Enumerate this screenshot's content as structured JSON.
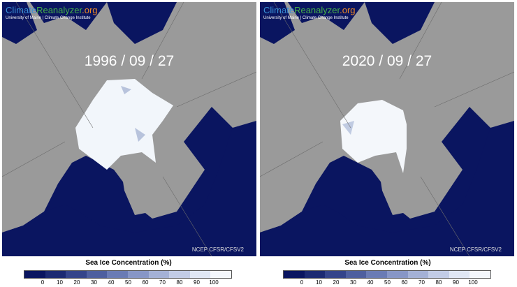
{
  "panels": [
    {
      "brand": {
        "climate": "Climate",
        "reanalyzer": "Reanalyzer",
        "org": ".org"
      },
      "subtitle": "University of Maine | Climate Change Institute",
      "date": "1996 / 09 / 27",
      "source": "NCEP CFSR/CFSV2"
    },
    {
      "brand": {
        "climate": "Climate",
        "reanalyzer": "Reanalyzer",
        "org": ".org"
      },
      "subtitle": "University of Maine | Climate Change Institute",
      "date": "2020 / 09 / 27",
      "source": "NCEP CFSR/CFSV2"
    }
  ],
  "legends": [
    {
      "title": "Sea Ice Concentration (%)",
      "ticks": [
        0,
        10,
        20,
        30,
        40,
        50,
        60,
        70,
        80,
        90,
        100
      ]
    },
    {
      "title": "Sea Ice Concentration (%)",
      "ticks": [
        0,
        10,
        20,
        30,
        40,
        50,
        60,
        70,
        80,
        90,
        100
      ]
    }
  ]
}
